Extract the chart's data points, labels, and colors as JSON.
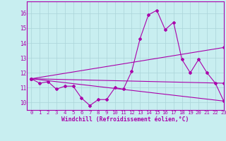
{
  "xlabel": "Windchill (Refroidissement éolien,°C)",
  "xlim": [
    -0.5,
    23
  ],
  "ylim": [
    9.5,
    16.8
  ],
  "yticks": [
    10,
    11,
    12,
    13,
    14,
    15,
    16
  ],
  "xticks": [
    0,
    1,
    2,
    3,
    4,
    5,
    6,
    7,
    8,
    9,
    10,
    11,
    12,
    13,
    14,
    15,
    16,
    17,
    18,
    19,
    20,
    21,
    22,
    23
  ],
  "background_color": "#c8eef0",
  "grid_color": "#aad4d8",
  "line_color": "#aa00aa",
  "line1_x": [
    0,
    1,
    2,
    3,
    4,
    5,
    6,
    7,
    8,
    9,
    10,
    11,
    12,
    13,
    14,
    15,
    16,
    17,
    18,
    19,
    20,
    21,
    22,
    23
  ],
  "line1_y": [
    11.6,
    11.3,
    11.4,
    10.9,
    11.1,
    11.1,
    10.3,
    9.8,
    10.2,
    10.2,
    11.0,
    10.9,
    12.1,
    14.3,
    15.9,
    16.2,
    14.9,
    15.4,
    12.9,
    12.0,
    12.9,
    12.0,
    11.3,
    10.1
  ],
  "line2_x": [
    0,
    23
  ],
  "line2_y": [
    11.6,
    13.7
  ],
  "line3_x": [
    0,
    23
  ],
  "line3_y": [
    11.6,
    11.3
  ],
  "line4_x": [
    0,
    23
  ],
  "line4_y": [
    11.6,
    10.1
  ]
}
